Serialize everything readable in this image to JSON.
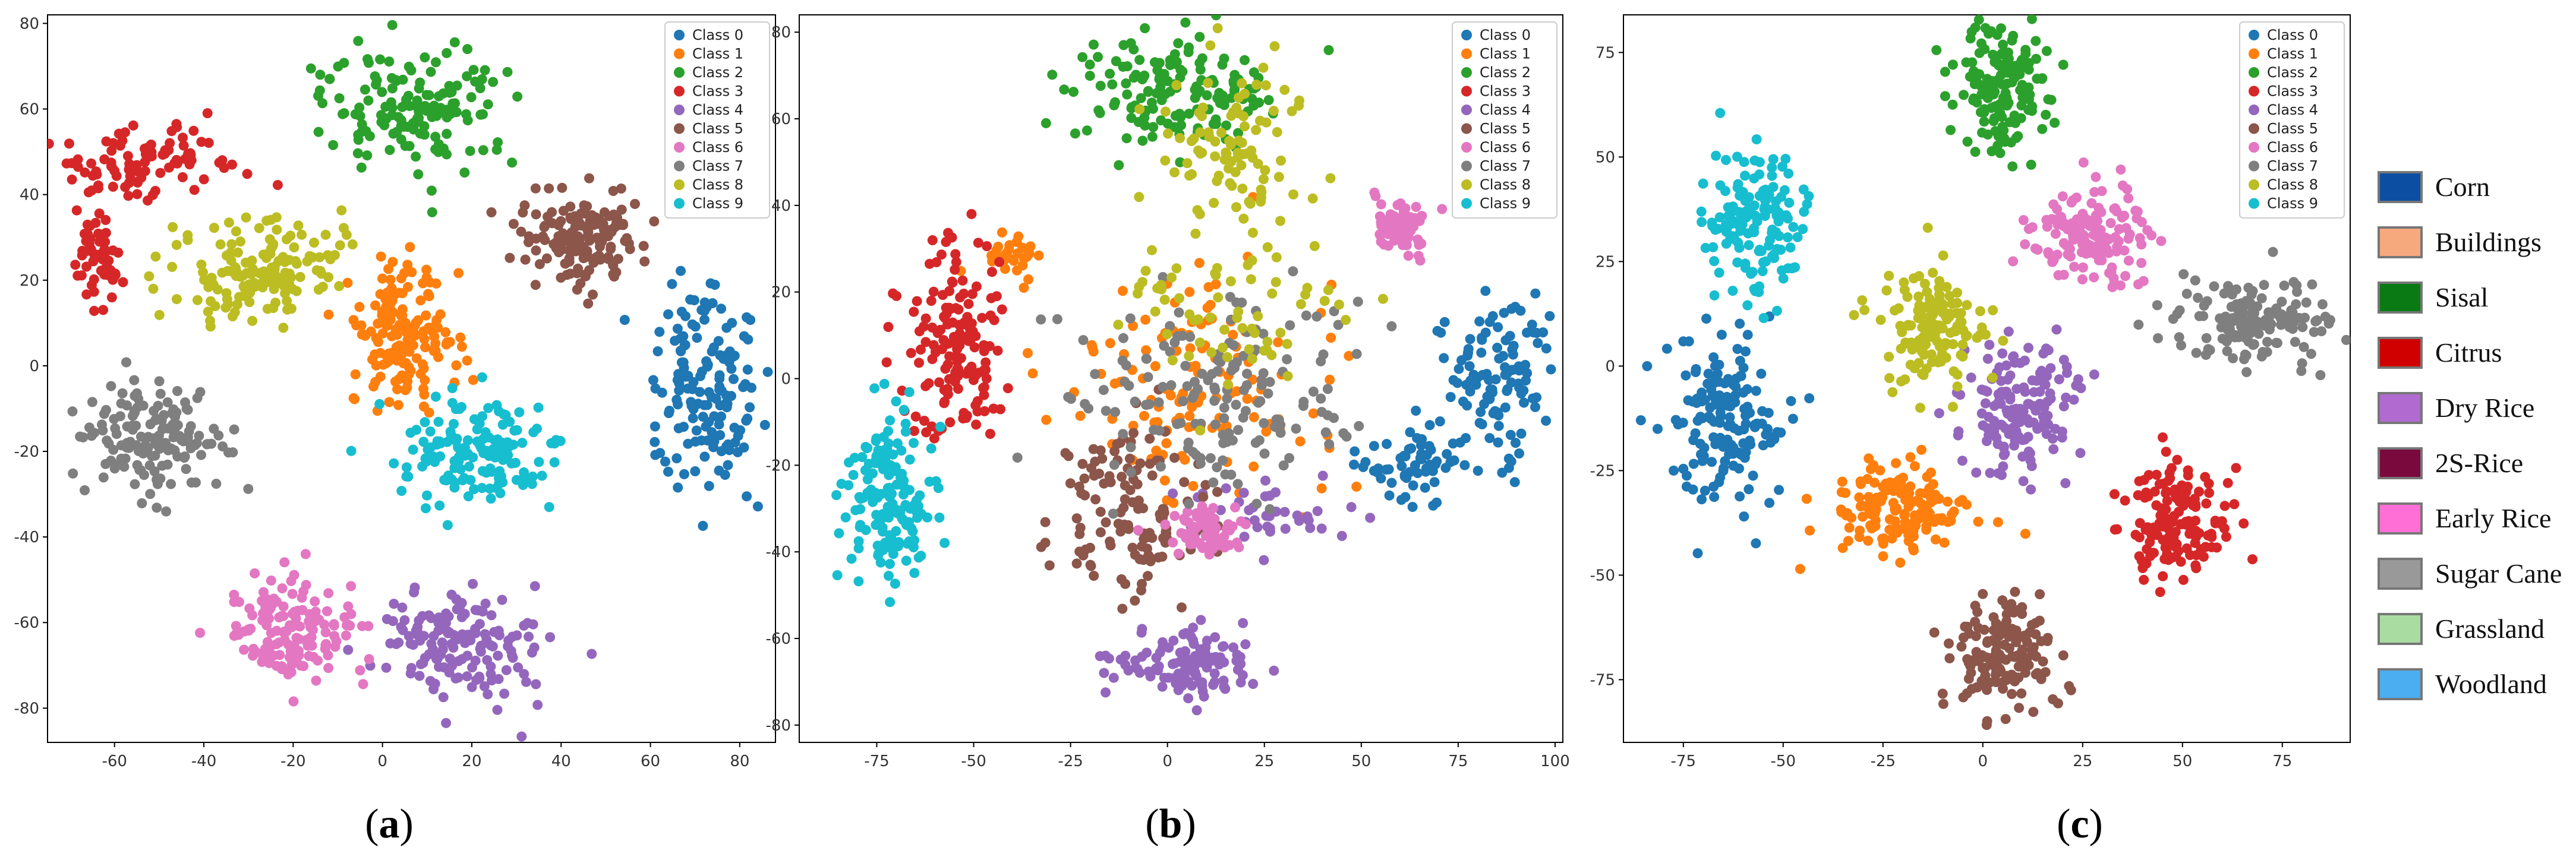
{
  "panels": [
    {
      "caption_open": "(",
      "caption_letter": "a",
      "caption_close": ")"
    },
    {
      "caption_open": "(",
      "caption_letter": "b",
      "caption_close": ")"
    },
    {
      "caption_open": "(",
      "caption_letter": "c",
      "caption_close": ")"
    }
  ],
  "legend_labels": [
    "Class 0",
    "Class 1",
    "Class 2",
    "Class 3",
    "Class 4",
    "Class 5",
    "Class 6",
    "Class 7",
    "Class 8",
    "Class 9"
  ],
  "class_colors": [
    "#1f77b4",
    "#ff7f0e",
    "#2ca02c",
    "#d62728",
    "#9467bd",
    "#8c564b",
    "#e377c2",
    "#7f7f7f",
    "#bcbd22",
    "#17becf"
  ],
  "right_legend": [
    {
      "label": "Corn",
      "color": "#0b4ea2"
    },
    {
      "label": "Buildings",
      "color": "#f7a97e"
    },
    {
      "label": "Sisal",
      "color": "#0a7a14"
    },
    {
      "label": "Citrus",
      "color": "#d00000"
    },
    {
      "label": "Dry Rice",
      "color": "#b06ad0"
    },
    {
      "label": "2S-Rice",
      "color": "#7a0a3e"
    },
    {
      "label": "Early Rice",
      "color": "#ff6fd6"
    },
    {
      "label": "Sugar Cane",
      "color": "#999999"
    },
    {
      "label": "Grassland",
      "color": "#a8dca0"
    },
    {
      "label": "Woodland",
      "color": "#4aaef0"
    }
  ],
  "chart_data": [
    {
      "type": "scatter",
      "panel": "a",
      "xlim": [
        -75,
        88
      ],
      "ylim": [
        -88,
        82
      ],
      "xticks": [
        -60,
        -40,
        -20,
        0,
        20,
        40,
        60,
        80
      ],
      "yticks": [
        -80,
        -60,
        -40,
        -20,
        0,
        20,
        40,
        60,
        80
      ],
      "series": [
        {
          "name": "Class 0",
          "clusters": [
            {
              "x": 73,
              "y": -5,
              "sx": 6,
              "sy": 12,
              "n": 150
            }
          ]
        },
        {
          "name": "Class 1",
          "clusters": [
            {
              "x": 4,
              "y": 8,
              "sx": 6,
              "sy": 9,
              "n": 150
            }
          ]
        },
        {
          "name": "Class 2",
          "clusters": [
            {
              "x": 8,
              "y": 60,
              "sx": 11,
              "sy": 7,
              "n": 150
            }
          ]
        },
        {
          "name": "Class 3",
          "clusters": [
            {
              "x": -52,
              "y": 47,
              "sx": 10,
              "sy": 4,
              "n": 90
            },
            {
              "x": -64,
              "y": 26,
              "sx": 3,
              "sy": 7,
              "n": 60
            }
          ]
        },
        {
          "name": "Class 4",
          "clusters": [
            {
              "x": 18,
              "y": -65,
              "sx": 9,
              "sy": 7,
              "n": 150
            }
          ]
        },
        {
          "name": "Class 5",
          "clusters": [
            {
              "x": 45,
              "y": 30,
              "sx": 7,
              "sy": 6,
              "n": 150
            }
          ]
        },
        {
          "name": "Class 6",
          "clusters": [
            {
              "x": -20,
              "y": -62,
              "sx": 8,
              "sy": 6,
              "n": 150
            }
          ]
        },
        {
          "name": "Class 7",
          "clusters": [
            {
              "x": -50,
              "y": -17,
              "sx": 8,
              "sy": 6,
              "n": 150
            }
          ]
        },
        {
          "name": "Class 8",
          "clusters": [
            {
              "x": -28,
              "y": 22,
              "sx": 9,
              "sy": 6,
              "n": 150
            }
          ]
        },
        {
          "name": "Class 9",
          "clusters": [
            {
              "x": 20,
              "y": -20,
              "sx": 9,
              "sy": 6,
              "n": 150
            }
          ]
        }
      ]
    },
    {
      "type": "scatter",
      "panel": "b",
      "xlim": [
        -95,
        102
      ],
      "ylim": [
        -84,
        84
      ],
      "xticks": [
        -75,
        -50,
        -25,
        0,
        25,
        50,
        75,
        100
      ],
      "yticks": [
        -80,
        -60,
        -40,
        -20,
        0,
        20,
        40,
        60,
        80
      ],
      "series": [
        {
          "name": "Class 0",
          "clusters": [
            {
              "x": 85,
              "y": 0,
              "sx": 6,
              "sy": 10,
              "n": 110
            },
            {
              "x": 62,
              "y": -20,
              "sx": 8,
              "sy": 4,
              "n": 60
            }
          ]
        },
        {
          "name": "Class 1",
          "clusters": [
            {
              "x": 8,
              "y": 0,
              "sx": 18,
              "sy": 14,
              "n": 130
            },
            {
              "x": -40,
              "y": 28,
              "sx": 4,
              "sy": 3,
              "n": 30
            }
          ]
        },
        {
          "name": "Class 2",
          "clusters": [
            {
              "x": 2,
              "y": 66,
              "sx": 13,
              "sy": 6,
              "n": 150
            }
          ]
        },
        {
          "name": "Class 3",
          "clusters": [
            {
              "x": -55,
              "y": 8,
              "sx": 6,
              "sy": 14,
              "n": 150
            }
          ]
        },
        {
          "name": "Class 4",
          "clusters": [
            {
              "x": 5,
              "y": -66,
              "sx": 10,
              "sy": 4,
              "n": 120
            },
            {
              "x": 25,
              "y": -32,
              "sx": 10,
              "sy": 4,
              "n": 40
            }
          ]
        },
        {
          "name": "Class 5",
          "clusters": [
            {
              "x": -10,
              "y": -30,
              "sx": 10,
              "sy": 10,
              "n": 130
            }
          ]
        },
        {
          "name": "Class 6",
          "clusters": [
            {
              "x": 60,
              "y": 35,
              "sx": 4,
              "sy": 3,
              "n": 70
            },
            {
              "x": 10,
              "y": -35,
              "sx": 5,
              "sy": 3,
              "n": 70
            }
          ]
        },
        {
          "name": "Class 7",
          "clusters": [
            {
              "x": 15,
              "y": -5,
              "sx": 20,
              "sy": 12,
              "n": 160
            }
          ]
        },
        {
          "name": "Class 8",
          "clusters": [
            {
              "x": 18,
              "y": 50,
              "sx": 10,
              "sy": 12,
              "n": 100
            },
            {
              "x": 20,
              "y": 15,
              "sx": 15,
              "sy": 8,
              "n": 60
            }
          ]
        },
        {
          "name": "Class 9",
          "clusters": [
            {
              "x": -72,
              "y": -28,
              "sx": 6,
              "sy": 10,
              "n": 150
            }
          ]
        }
      ]
    },
    {
      "type": "scatter",
      "panel": "c",
      "xlim": [
        -90,
        92
      ],
      "ylim": [
        -90,
        84
      ],
      "xticks": [
        -75,
        -50,
        -25,
        0,
        25,
        50,
        75
      ],
      "yticks": [
        -75,
        -50,
        -25,
        0,
        25,
        50,
        75
      ],
      "series": [
        {
          "name": "Class 0",
          "clusters": [
            {
              "x": -64,
              "y": -13,
              "sx": 7,
              "sy": 9,
              "n": 150
            }
          ]
        },
        {
          "name": "Class 1",
          "clusters": [
            {
              "x": -22,
              "y": -35,
              "sx": 9,
              "sy": 6,
              "n": 150
            }
          ]
        },
        {
          "name": "Class 2",
          "clusters": [
            {
              "x": 5,
              "y": 66,
              "sx": 6,
              "sy": 8,
              "n": 150
            }
          ]
        },
        {
          "name": "Class 3",
          "clusters": [
            {
              "x": 48,
              "y": -38,
              "sx": 7,
              "sy": 7,
              "n": 150
            }
          ]
        },
        {
          "name": "Class 4",
          "clusters": [
            {
              "x": 10,
              "y": -10,
              "sx": 7,
              "sy": 8,
              "n": 150
            }
          ]
        },
        {
          "name": "Class 5",
          "clusters": [
            {
              "x": 5,
              "y": -70,
              "sx": 6,
              "sy": 7,
              "n": 150
            }
          ]
        },
        {
          "name": "Class 6",
          "clusters": [
            {
              "x": 27,
              "y": 32,
              "sx": 7,
              "sy": 5,
              "n": 150
            }
          ]
        },
        {
          "name": "Class 7",
          "clusters": [
            {
              "x": 68,
              "y": 10,
              "sx": 10,
              "sy": 5,
              "n": 150
            }
          ]
        },
        {
          "name": "Class 8",
          "clusters": [
            {
              "x": -13,
              "y": 10,
              "sx": 6,
              "sy": 8,
              "n": 150
            }
          ]
        },
        {
          "name": "Class 9",
          "clusters": [
            {
              "x": -57,
              "y": 35,
              "sx": 6,
              "sy": 9,
              "n": 150
            }
          ]
        }
      ]
    }
  ]
}
